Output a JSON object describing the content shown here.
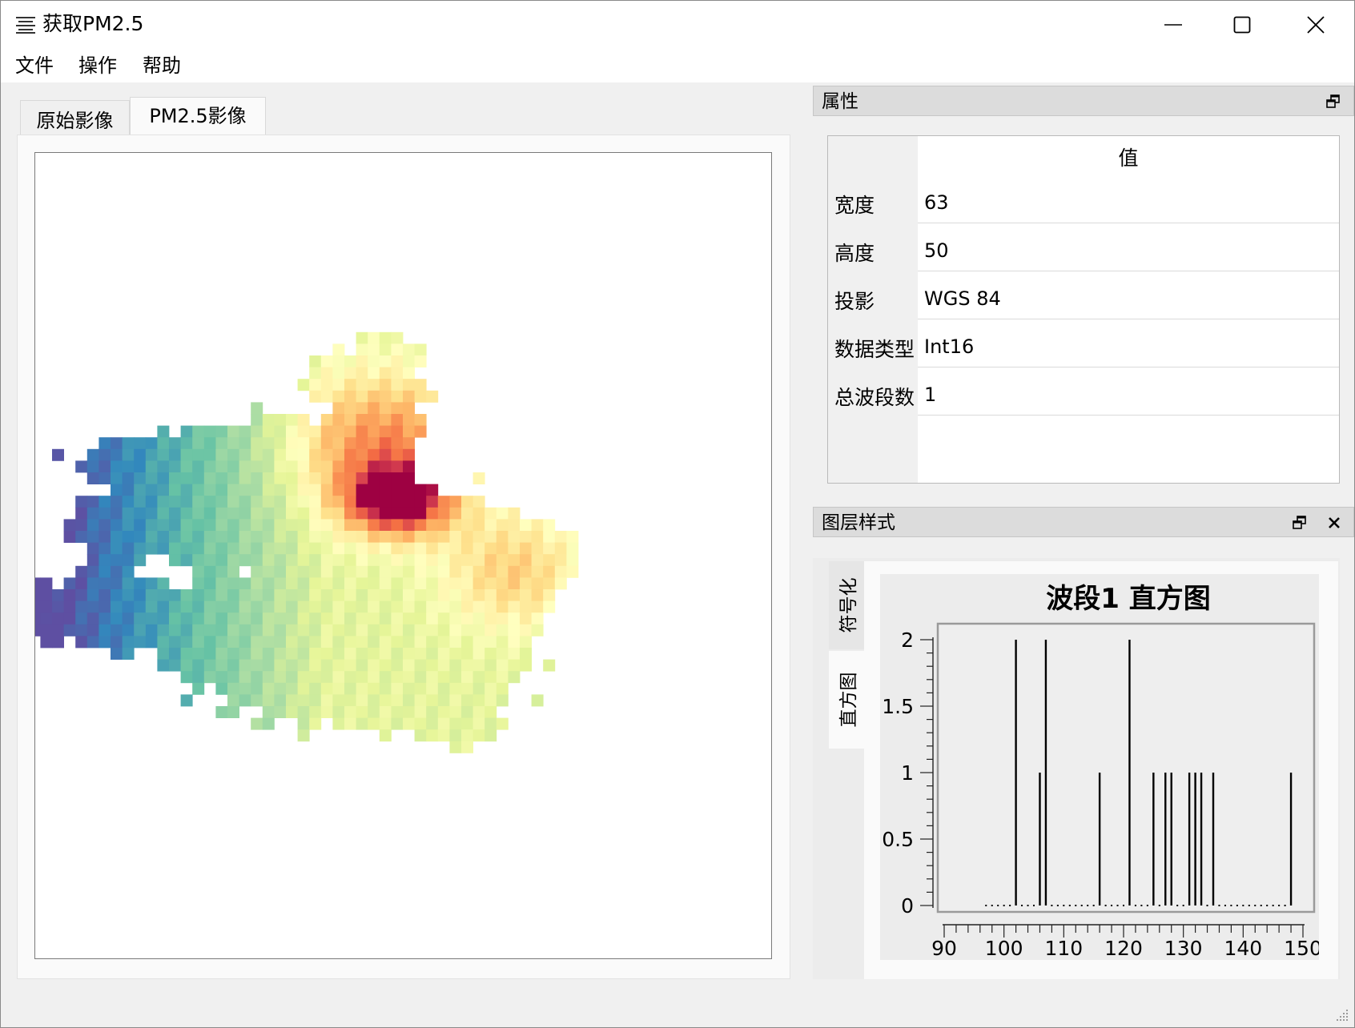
{
  "window": {
    "title": "获取PM2.5",
    "menu": [
      "文件",
      "操作",
      "帮助"
    ]
  },
  "tabs": [
    {
      "label": "原始影像",
      "active": false
    },
    {
      "label": "PM2.5影像",
      "active": true
    }
  ],
  "properties_panel": {
    "title": "属性",
    "value_header": "值",
    "rows": [
      {
        "key": "宽度",
        "value": "63"
      },
      {
        "key": "高度",
        "value": "50"
      },
      {
        "key": "投影",
        "value": "WGS 84"
      },
      {
        "key": "数据类型",
        "value": "Int16"
      },
      {
        "key": "总波段数",
        "value": "1"
      }
    ]
  },
  "layer_style_panel": {
    "title": "图层样式",
    "side_tabs": [
      "符号化",
      "直方图"
    ],
    "active_tab": "直方图"
  },
  "colors": {
    "raster_low": "#5e4fa2",
    "raster_mid": "#ffffbf",
    "raster_high": "#9e0142"
  },
  "chart_data": {
    "type": "bar",
    "title": "波段1 直方图",
    "xlabel": "",
    "ylabel": "",
    "xlim": [
      90,
      150
    ],
    "ylim": [
      0,
      2
    ],
    "xticks": [
      90,
      100,
      110,
      120,
      130,
      140,
      150
    ],
    "yticks": [
      0,
      0.5,
      1,
      1.5,
      2
    ],
    "ytick_labels": [
      "0",
      "0.5",
      "1",
      "1.5",
      "2"
    ],
    "grid": false,
    "x": [
      97,
      98,
      99,
      100,
      101,
      102,
      103,
      104,
      105,
      106,
      107,
      108,
      109,
      110,
      111,
      112,
      113,
      114,
      115,
      116,
      117,
      118,
      119,
      120,
      121,
      122,
      123,
      124,
      125,
      126,
      127,
      128,
      129,
      130,
      131,
      132,
      133,
      134,
      135,
      136,
      137,
      138,
      139,
      140,
      141,
      142,
      143,
      144,
      145,
      146,
      147,
      148
    ],
    "values": [
      0,
      0,
      0,
      0,
      0,
      2,
      0,
      0,
      0,
      1,
      2,
      0,
      0,
      0,
      0,
      0,
      0,
      0,
      0,
      1,
      0,
      0,
      0,
      0,
      2,
      0,
      0,
      0,
      1,
      0,
      1,
      1,
      0,
      0,
      1,
      1,
      1,
      0,
      1,
      0,
      0,
      0,
      0,
      0,
      0,
      0,
      0,
      0,
      0,
      0,
      0,
      1
    ]
  }
}
